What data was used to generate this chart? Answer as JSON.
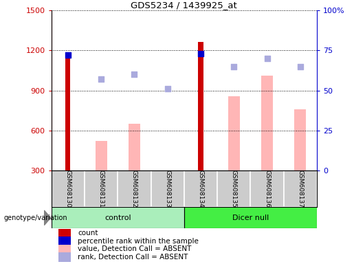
{
  "title": "GDS5234 / 1439925_at",
  "samples": [
    "GSM608130",
    "GSM608131",
    "GSM608132",
    "GSM608133",
    "GSM608134",
    "GSM608135",
    "GSM608136",
    "GSM608137"
  ],
  "red_bars": [
    1160,
    0,
    0,
    0,
    1265,
    0,
    0,
    0
  ],
  "pink_bars": [
    0,
    520,
    650,
    300,
    0,
    855,
    1010,
    760
  ],
  "blue_squares_present": [
    72,
    0,
    0,
    0,
    73,
    0,
    0,
    0
  ],
  "blue_squares_absent": [
    0,
    57,
    60,
    51,
    0,
    65,
    70,
    65
  ],
  "ylim_left": [
    300,
    1500
  ],
  "ylim_right": [
    0,
    100
  ],
  "yticks_left": [
    300,
    600,
    900,
    1200,
    1500
  ],
  "yticks_right": [
    0,
    25,
    50,
    75,
    100
  ],
  "yticklabels_right": [
    "0",
    "25",
    "50",
    "75",
    "100%"
  ],
  "left_tick_color": "#cc0000",
  "right_tick_color": "#0000cc",
  "bg_color": "#cccccc",
  "plot_bg": "#ffffff",
  "red_bar_color": "#cc0000",
  "pink_bar_color": "#ffb6b6",
  "dark_blue_color": "#0000cc",
  "light_blue_color": "#aaaadd",
  "control_color": "#aaeebb",
  "dicer_color": "#44ee44",
  "legend_labels": [
    "count",
    "percentile rank within the sample",
    "value, Detection Call = ABSENT",
    "rank, Detection Call = ABSENT"
  ],
  "legend_colors": [
    "#cc0000",
    "#0000cc",
    "#ffb6b6",
    "#aaaadd"
  ],
  "genotype_label": "genotype/variation"
}
